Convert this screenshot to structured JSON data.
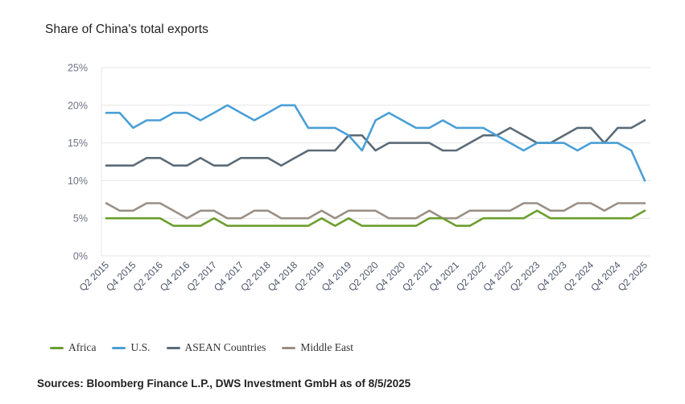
{
  "chart_data": {
    "type": "line",
    "title": "Share of China's total exports",
    "xlabel": "",
    "ylabel": "",
    "ylim": [
      0,
      25
    ],
    "y_ticks": [
      "0%",
      "5%",
      "10%",
      "15%",
      "20%",
      "25%"
    ],
    "y_tick_values": [
      0,
      5,
      10,
      15,
      20,
      25
    ],
    "grid": true,
    "legend_position": "bottom-left",
    "x": [
      "Q2 2015",
      "Q3 2015",
      "Q4 2015",
      "Q1 2016",
      "Q2 2016",
      "Q3 2016",
      "Q4 2016",
      "Q1 2017",
      "Q2 2017",
      "Q3 2017",
      "Q4 2017",
      "Q1 2018",
      "Q2 2018",
      "Q3 2018",
      "Q4 2018",
      "Q1 2019",
      "Q2 2019",
      "Q3 2019",
      "Q4 2019",
      "Q1 2020",
      "Q2 2020",
      "Q3 2020",
      "Q4 2020",
      "Q1 2021",
      "Q2 2021",
      "Q3 2021",
      "Q4 2021",
      "Q1 2022",
      "Q2 2022",
      "Q3 2022",
      "Q4 2022",
      "Q1 2023",
      "Q2 2023",
      "Q3 2023",
      "Q4 2023",
      "Q1 2024",
      "Q2 2024",
      "Q3 2024",
      "Q4 2024",
      "Q1 2025",
      "Q2 2025"
    ],
    "x_tick_labels": [
      "Q2 2015",
      "Q4 2015",
      "Q2 2016",
      "Q4 2016",
      "Q2 2017",
      "Q4 2017",
      "Q2 2018",
      "Q4 2018",
      "Q2 2019",
      "Q4 2019",
      "Q2 2020",
      "Q4 2020",
      "Q2 2021",
      "Q4 2021",
      "Q2 2022",
      "Q4 2022",
      "Q2 2023",
      "Q4 2023",
      "Q2 2024",
      "Q4 2024",
      "Q2 2025"
    ],
    "series": [
      {
        "name": "Africa",
        "color": "#6b9e2e",
        "values": [
          5,
          5,
          5,
          5,
          5,
          4,
          4,
          4,
          5,
          4,
          4,
          4,
          4,
          4,
          4,
          4,
          5,
          4,
          5,
          4,
          4,
          4,
          4,
          4,
          5,
          5,
          4,
          4,
          5,
          5,
          5,
          5,
          6,
          5,
          5,
          5,
          5,
          5,
          5,
          5,
          6
        ]
      },
      {
        "name": "U.S.",
        "color": "#4a9fd5",
        "values": [
          19,
          19,
          17,
          18,
          18,
          19,
          19,
          18,
          19,
          20,
          19,
          18,
          19,
          20,
          20,
          17,
          17,
          17,
          16,
          14,
          18,
          19,
          18,
          17,
          17,
          18,
          17,
          17,
          17,
          16,
          15,
          14,
          15,
          15,
          15,
          14,
          15,
          15,
          15,
          14,
          10
        ]
      },
      {
        "name": "ASEAN Countries",
        "color": "#5b6b78",
        "values": [
          12,
          12,
          12,
          13,
          13,
          12,
          12,
          13,
          12,
          12,
          13,
          13,
          13,
          12,
          13,
          14,
          14,
          14,
          16,
          16,
          14,
          15,
          15,
          15,
          15,
          14,
          14,
          15,
          16,
          16,
          17,
          16,
          15,
          15,
          16,
          17,
          17,
          15,
          17,
          17,
          18
        ]
      },
      {
        "name": "Middle East",
        "color": "#9a8f85",
        "values": [
          7,
          6,
          6,
          7,
          7,
          6,
          5,
          6,
          6,
          5,
          5,
          6,
          6,
          5,
          5,
          5,
          6,
          5,
          6,
          6,
          6,
          5,
          5,
          5,
          6,
          5,
          5,
          6,
          6,
          6,
          6,
          7,
          7,
          6,
          6,
          7,
          7,
          6,
          7,
          7,
          7
        ]
      }
    ]
  },
  "legend": {
    "items": [
      {
        "label": "Africa",
        "color": "#6b9e2e"
      },
      {
        "label": "U.S.",
        "color": "#4a9fd5"
      },
      {
        "label": "ASEAN Countries",
        "color": "#5b6b78"
      },
      {
        "label": "Middle East",
        "color": "#9a8f85"
      }
    ]
  },
  "source": "Sources: Bloomberg Finance L.P., DWS Investment GmbH as of 8/5/2025"
}
